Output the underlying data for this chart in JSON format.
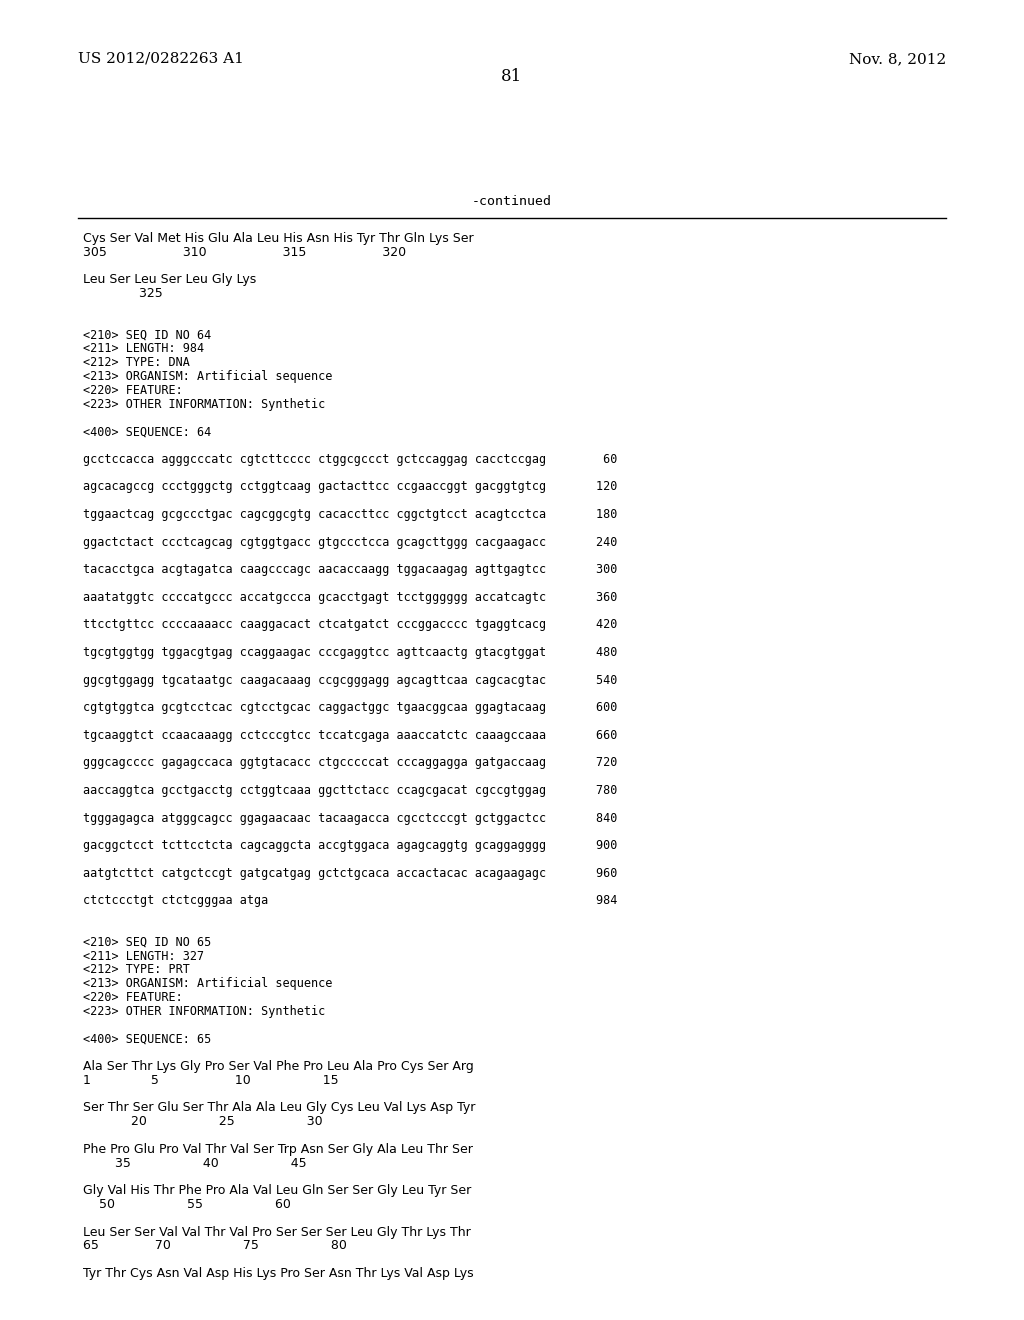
{
  "header_left": "US 2012/0282263 A1",
  "header_right": "Nov. 8, 2012",
  "page_number": "81",
  "continued_label": "-continued",
  "background_color": "#ffffff",
  "text_color": "#000000",
  "font_size_header": 11,
  "font_size_body": 9.5,
  "font_size_page": 12,
  "font_size_mono": 8.5,
  "lines": [
    {
      "text": "Cys Ser Val Met His Glu Ala Leu His Asn His Tyr Thr Gln Lys Ser",
      "mono": false
    },
    {
      "text": "305                   310                   315                   320",
      "mono": false
    },
    {
      "text": "",
      "mono": false
    },
    {
      "text": "Leu Ser Leu Ser Leu Gly Lys",
      "mono": false
    },
    {
      "text": "              325",
      "mono": false
    },
    {
      "text": "",
      "mono": false
    },
    {
      "text": "",
      "mono": false
    },
    {
      "text": "<210> SEQ ID NO 64",
      "mono": true
    },
    {
      "text": "<211> LENGTH: 984",
      "mono": true
    },
    {
      "text": "<212> TYPE: DNA",
      "mono": true
    },
    {
      "text": "<213> ORGANISM: Artificial sequence",
      "mono": true
    },
    {
      "text": "<220> FEATURE:",
      "mono": true
    },
    {
      "text": "<223> OTHER INFORMATION: Synthetic",
      "mono": true
    },
    {
      "text": "",
      "mono": false
    },
    {
      "text": "<400> SEQUENCE: 64",
      "mono": true
    },
    {
      "text": "",
      "mono": false
    },
    {
      "text": "gcctccacca agggcccatc cgtcttcccc ctggcgccct gctccaggag cacctccgag        60",
      "mono": true
    },
    {
      "text": "",
      "mono": false
    },
    {
      "text": "agcacagccg ccctgggctg cctggtcaag gactacttcc ccgaaccggt gacggtgtcg       120",
      "mono": true
    },
    {
      "text": "",
      "mono": false
    },
    {
      "text": "tggaactcag gcgccctgac cagcggcgtg cacaccttcc cggctgtcct acagtcctca       180",
      "mono": true
    },
    {
      "text": "",
      "mono": false
    },
    {
      "text": "ggactctact ccctcagcag cgtggtgacc gtgccctcca gcagcttggg cacgaagacc       240",
      "mono": true
    },
    {
      "text": "",
      "mono": false
    },
    {
      "text": "tacacctgca acgtagatca caagcccagc aacaccaagg tggacaagag agttgagtcc       300",
      "mono": true
    },
    {
      "text": "",
      "mono": false
    },
    {
      "text": "aaatatggtc ccccatgccc accatgccca gcacctgagt tcctgggggg accatcagtc       360",
      "mono": true
    },
    {
      "text": "",
      "mono": false
    },
    {
      "text": "ttcctgttcc ccccaaaacc caaggacact ctcatgatct cccggacccc tgaggtcacg       420",
      "mono": true
    },
    {
      "text": "",
      "mono": false
    },
    {
      "text": "tgcgtggtgg tggacgtgag ccaggaagac cccgaggtcc agttcaactg gtacgtggat       480",
      "mono": true
    },
    {
      "text": "",
      "mono": false
    },
    {
      "text": "ggcgtggagg tgcataatgc caagacaaag ccgcgggagg agcagttcaa cagcacgtac       540",
      "mono": true
    },
    {
      "text": "",
      "mono": false
    },
    {
      "text": "cgtgtggtca gcgtcctcac cgtcctgcac caggactggc tgaacggcaa ggagtacaag       600",
      "mono": true
    },
    {
      "text": "",
      "mono": false
    },
    {
      "text": "tgcaaggtct ccaacaaagg cctcccgtcc tccatcgaga aaaccatctc caaagccaaa       660",
      "mono": true
    },
    {
      "text": "",
      "mono": false
    },
    {
      "text": "gggcagcccc gagagccaca ggtgtacacc ctgcccccat cccaggagga gatgaccaag       720",
      "mono": true
    },
    {
      "text": "",
      "mono": false
    },
    {
      "text": "aaccaggtca gcctgacctg cctggtcaaa ggcttctacc ccagcgacat cgccgtggag       780",
      "mono": true
    },
    {
      "text": "",
      "mono": false
    },
    {
      "text": "tgggagagca atgggcagcc ggagaacaac tacaagacca cgcctcccgt gctggactcc       840",
      "mono": true
    },
    {
      "text": "",
      "mono": false
    },
    {
      "text": "gacggctcct tcttcctcta cagcaggcta accgtggaca agagcaggtg gcaggagggg       900",
      "mono": true
    },
    {
      "text": "",
      "mono": false
    },
    {
      "text": "aatgtcttct catgctccgt gatgcatgag gctctgcaca accactacac acagaagagc       960",
      "mono": true
    },
    {
      "text": "",
      "mono": false
    },
    {
      "text": "ctctccctgt ctctcgggaa atga                                              984",
      "mono": true
    },
    {
      "text": "",
      "mono": false
    },
    {
      "text": "",
      "mono": false
    },
    {
      "text": "<210> SEQ ID NO 65",
      "mono": true
    },
    {
      "text": "<211> LENGTH: 327",
      "mono": true
    },
    {
      "text": "<212> TYPE: PRT",
      "mono": true
    },
    {
      "text": "<213> ORGANISM: Artificial sequence",
      "mono": true
    },
    {
      "text": "<220> FEATURE:",
      "mono": true
    },
    {
      "text": "<223> OTHER INFORMATION: Synthetic",
      "mono": true
    },
    {
      "text": "",
      "mono": false
    },
    {
      "text": "<400> SEQUENCE: 65",
      "mono": true
    },
    {
      "text": "",
      "mono": false
    },
    {
      "text": "Ala Ser Thr Lys Gly Pro Ser Val Phe Pro Leu Ala Pro Cys Ser Arg",
      "mono": false
    },
    {
      "text": "1               5                   10                  15",
      "mono": false
    },
    {
      "text": "",
      "mono": false
    },
    {
      "text": "Ser Thr Ser Glu Ser Thr Ala Ala Leu Gly Cys Leu Val Lys Asp Tyr",
      "mono": false
    },
    {
      "text": "            20                  25                  30",
      "mono": false
    },
    {
      "text": "",
      "mono": false
    },
    {
      "text": "Phe Pro Glu Pro Val Thr Val Ser Trp Asn Ser Gly Ala Leu Thr Ser",
      "mono": false
    },
    {
      "text": "        35                  40                  45",
      "mono": false
    },
    {
      "text": "",
      "mono": false
    },
    {
      "text": "Gly Val His Thr Phe Pro Ala Val Leu Gln Ser Ser Gly Leu Tyr Ser",
      "mono": false
    },
    {
      "text": "    50                  55                  60",
      "mono": false
    },
    {
      "text": "",
      "mono": false
    },
    {
      "text": "Leu Ser Ser Val Val Thr Val Pro Ser Ser Ser Leu Gly Thr Lys Thr",
      "mono": false
    },
    {
      "text": "65              70                  75                  80",
      "mono": false
    },
    {
      "text": "",
      "mono": false
    },
    {
      "text": "Tyr Thr Cys Asn Val Asp His Lys Pro Ser Asn Thr Lys Val Asp Lys",
      "mono": false
    }
  ]
}
